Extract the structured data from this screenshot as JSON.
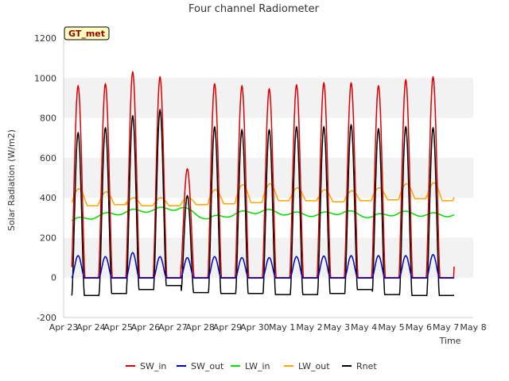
{
  "chart_data": {
    "type": "line",
    "title": "Four channel Radiometer",
    "xlabel": "Time",
    "ylabel": "Solar Radiation (W/m2)",
    "ylim": [
      -200,
      1200
    ],
    "xlim": [
      0,
      15
    ],
    "yticks": [
      -200,
      0,
      200,
      400,
      600,
      800,
      1000,
      1200
    ],
    "x_tick_labels": [
      "Apr 23",
      "Apr 24",
      "Apr 25",
      "Apr 26",
      "Apr 27",
      "Apr 28",
      "Apr 29",
      "Apr 30",
      "May 1",
      "May 2",
      "May 3",
      "May 4",
      "May 5",
      "May 6",
      "May 7",
      "May 8"
    ],
    "x_data_start": 0.3,
    "x_data_end": 14.3,
    "station_badge": "GT_met",
    "legend_position": "bottom-center",
    "grid": "alternating horizontal bands",
    "colors": {
      "SW_in": "#dd0000",
      "SW_out": "#0000cc",
      "LW_in": "#00dd00",
      "LW_out": "#ffa500",
      "Rnet": "#000000",
      "band": "#f2f2f2",
      "badge_bg": "#ffffc0",
      "badge_text": "#990000"
    },
    "series": [
      {
        "name": "SW_in",
        "daily_peaks": [
          960,
          970,
          1030,
          1005,
          545,
          970,
          960,
          945,
          965,
          975,
          975,
          960,
          990,
          1005
        ],
        "night_value": 0
      },
      {
        "name": "SW_out",
        "daily_peaks": [
          110,
          105,
          125,
          105,
          100,
          105,
          100,
          100,
          105,
          108,
          110,
          110,
          110,
          115
        ],
        "night_value": -2
      },
      {
        "name": "LW_in",
        "daily_values": [
          285,
          310,
          330,
          340,
          350,
          295,
          320,
          335,
          320,
          315,
          330,
          305,
          325,
          315
        ],
        "daily_amplitude": 20
      },
      {
        "name": "LW_out",
        "daily_base": [
          360,
          365,
          360,
          360,
          365,
          370,
          375,
          385,
          385,
          380,
          385,
          390,
          395,
          385
        ],
        "daily_peaks": [
          445,
          430,
          400,
          400,
          400,
          440,
          465,
          470,
          450,
          440,
          435,
          450,
          470,
          475
        ]
      },
      {
        "name": "Rnet",
        "daily_peaks": [
          725,
          750,
          810,
          840,
          410,
          755,
          740,
          740,
          755,
          755,
          765,
          745,
          755,
          750
        ],
        "night_values": [
          -90,
          -80,
          -60,
          -40,
          -75,
          -80,
          -80,
          -85,
          -85,
          -80,
          -60,
          -85,
          -90,
          -90
        ]
      }
    ]
  }
}
